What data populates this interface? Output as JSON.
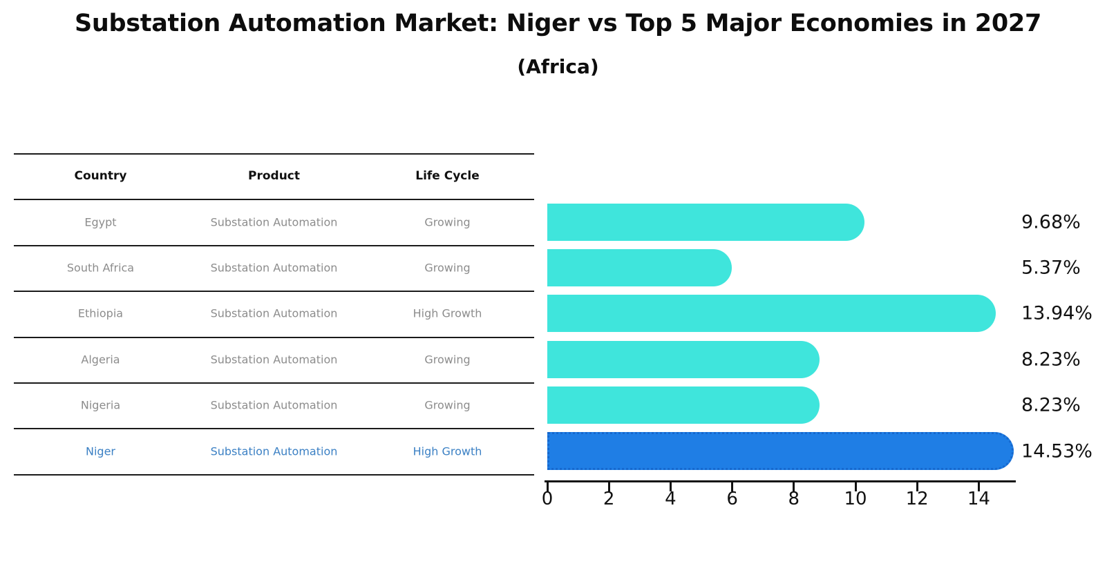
{
  "title": "Substation Automation Market: Niger vs Top 5 Major Economies in 2027",
  "subtitle": "(Africa)",
  "table": {
    "columns": [
      "Country",
      "Product",
      "Life Cycle"
    ],
    "rows": [
      {
        "country": "Egypt",
        "product": "Substation Automation",
        "life_cycle": "Growing",
        "value": 9.68,
        "value_label": "9.68%",
        "highlight": false
      },
      {
        "country": "South Africa",
        "product": "Substation Automation",
        "life_cycle": "Growing",
        "value": 5.37,
        "value_label": "5.37%",
        "highlight": false
      },
      {
        "country": "Ethiopia",
        "product": "Substation Automation",
        "life_cycle": "High Growth",
        "value": 13.94,
        "value_label": "13.94%",
        "highlight": false
      },
      {
        "country": "Algeria",
        "product": "Substation Automation",
        "life_cycle": "Growing",
        "value": 8.23,
        "value_label": "8.23%",
        "highlight": false
      },
      {
        "country": "Nigeria",
        "product": "Substation Automation",
        "life_cycle": "Growing",
        "value": 8.23,
        "value_label": "8.23%",
        "highlight": false
      },
      {
        "country": "Niger",
        "product": "Substation Automation",
        "life_cycle": "High Growth",
        "value": 14.53,
        "value_label": "14.53%",
        "highlight": true
      }
    ]
  },
  "chart_data": {
    "type": "bar",
    "orientation": "horizontal",
    "title": "Substation Automation Market: Niger vs Top 5 Major Economies in 2027",
    "subtitle": "(Africa)",
    "categories": [
      "Egypt",
      "South Africa",
      "Ethiopia",
      "Algeria",
      "Nigeria",
      "Niger"
    ],
    "values": [
      9.68,
      5.37,
      13.94,
      8.23,
      8.23,
      14.53
    ],
    "value_labels": [
      "9.68%",
      "5.37%",
      "13.94%",
      "8.23%",
      "8.23%",
      "14.53%"
    ],
    "units": "percent",
    "x_ticks": [
      0,
      2,
      4,
      6,
      8,
      10,
      12,
      14
    ],
    "xlim": [
      0,
      15.2
    ],
    "grid": false,
    "legend": false,
    "highlighted_category": "Niger"
  },
  "colors": {
    "bar_default": "#3FE5DC",
    "bar_highlight": "#1F7EE5",
    "bar_highlight_border": "#1668CE",
    "highlight_text": "#3B80C4",
    "table_text": "#8C8C8C",
    "header_text": "#111111",
    "axis": "#111111"
  }
}
